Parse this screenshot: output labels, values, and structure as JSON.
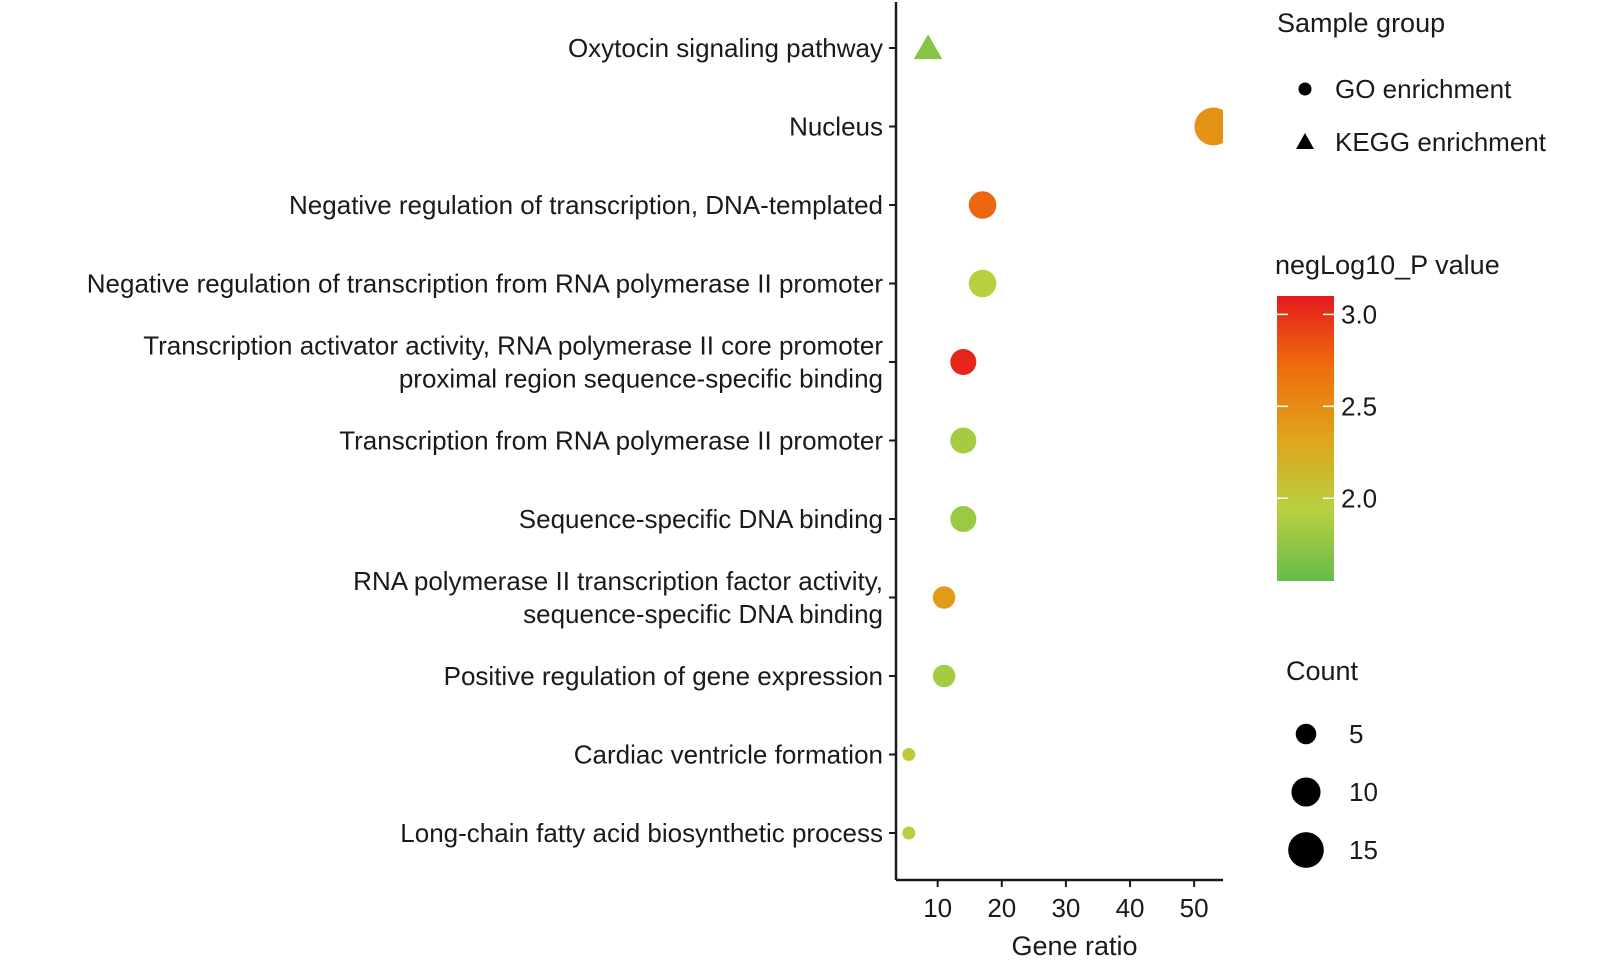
{
  "chart_data": {
    "type": "scatter",
    "xlabel": "Gene ratio",
    "ylabel": "",
    "xlim": [
      3.5,
      54.5
    ],
    "xticks": [
      10,
      20,
      30,
      40,
      50
    ],
    "grid": false,
    "legend_placement": "right",
    "categories": [
      [
        "Oxytocin signaling pathway"
      ],
      [
        "Nucleus"
      ],
      [
        "Negative regulation of transcription, DNA-templated"
      ],
      [
        "Negative regulation of transcription from RNA polymerase II promoter"
      ],
      [
        "Transcription activator activity, RNA polymerase II core promoter",
        "proximal region sequence-specific binding"
      ],
      [
        "Transcription from RNA polymerase II promoter"
      ],
      [
        "Sequence-specific DNA binding"
      ],
      [
        "RNA polymerase II transcription factor activity,",
        "sequence-specific DNA binding"
      ],
      [
        "Positive regulation of gene expression"
      ],
      [
        "Cardiac ventricle formation"
      ],
      [
        "Long-chain fatty acid biosynthetic process"
      ]
    ],
    "points": [
      {
        "gene_ratio": 8.5,
        "count": 8,
        "neglog10_p": 1.7,
        "group": "KEGG enrichment"
      },
      {
        "gene_ratio": 53,
        "count": 17,
        "neglog10_p": 2.45,
        "group": "GO enrichment"
      },
      {
        "gene_ratio": 17,
        "count": 9,
        "neglog10_p": 2.75,
        "group": "GO enrichment"
      },
      {
        "gene_ratio": 17,
        "count": 9,
        "neglog10_p": 1.95,
        "group": "GO enrichment"
      },
      {
        "gene_ratio": 14,
        "count": 8,
        "neglog10_p": 3.05,
        "group": "GO enrichment"
      },
      {
        "gene_ratio": 14,
        "count": 8,
        "neglog10_p": 1.85,
        "group": "GO enrichment"
      },
      {
        "gene_ratio": 14,
        "count": 8,
        "neglog10_p": 1.8,
        "group": "GO enrichment"
      },
      {
        "gene_ratio": 11,
        "count": 6,
        "neglog10_p": 2.4,
        "group": "GO enrichment"
      },
      {
        "gene_ratio": 11,
        "count": 6,
        "neglog10_p": 1.85,
        "group": "GO enrichment"
      },
      {
        "gene_ratio": 5.5,
        "count": 2,
        "neglog10_p": 2.0,
        "group": "GO enrichment"
      },
      {
        "gene_ratio": 5.5,
        "count": 2,
        "neglog10_p": 1.95,
        "group": "GO enrichment"
      }
    ],
    "legend_shape": {
      "title": "Sample group",
      "items": [
        {
          "label": "GO enrichment",
          "shape": "circle"
        },
        {
          "label": "KEGG enrichment",
          "shape": "triangle"
        }
      ]
    },
    "legend_color": {
      "title": "negLog10_P value",
      "range": [
        1.55,
        3.1
      ],
      "ticks": [
        "3.0",
        "2.5",
        "2.0"
      ],
      "tick_values": [
        3.0,
        2.5,
        2.0
      ],
      "colors": [
        "#66bb4a",
        "#b9d040",
        "#dfa41c",
        "#ee6e0c",
        "#e51a1d"
      ]
    },
    "legend_size": {
      "title": "Count",
      "ticks": [
        "5",
        "10",
        "15"
      ],
      "tick_values": [
        5,
        10,
        15
      ]
    }
  }
}
